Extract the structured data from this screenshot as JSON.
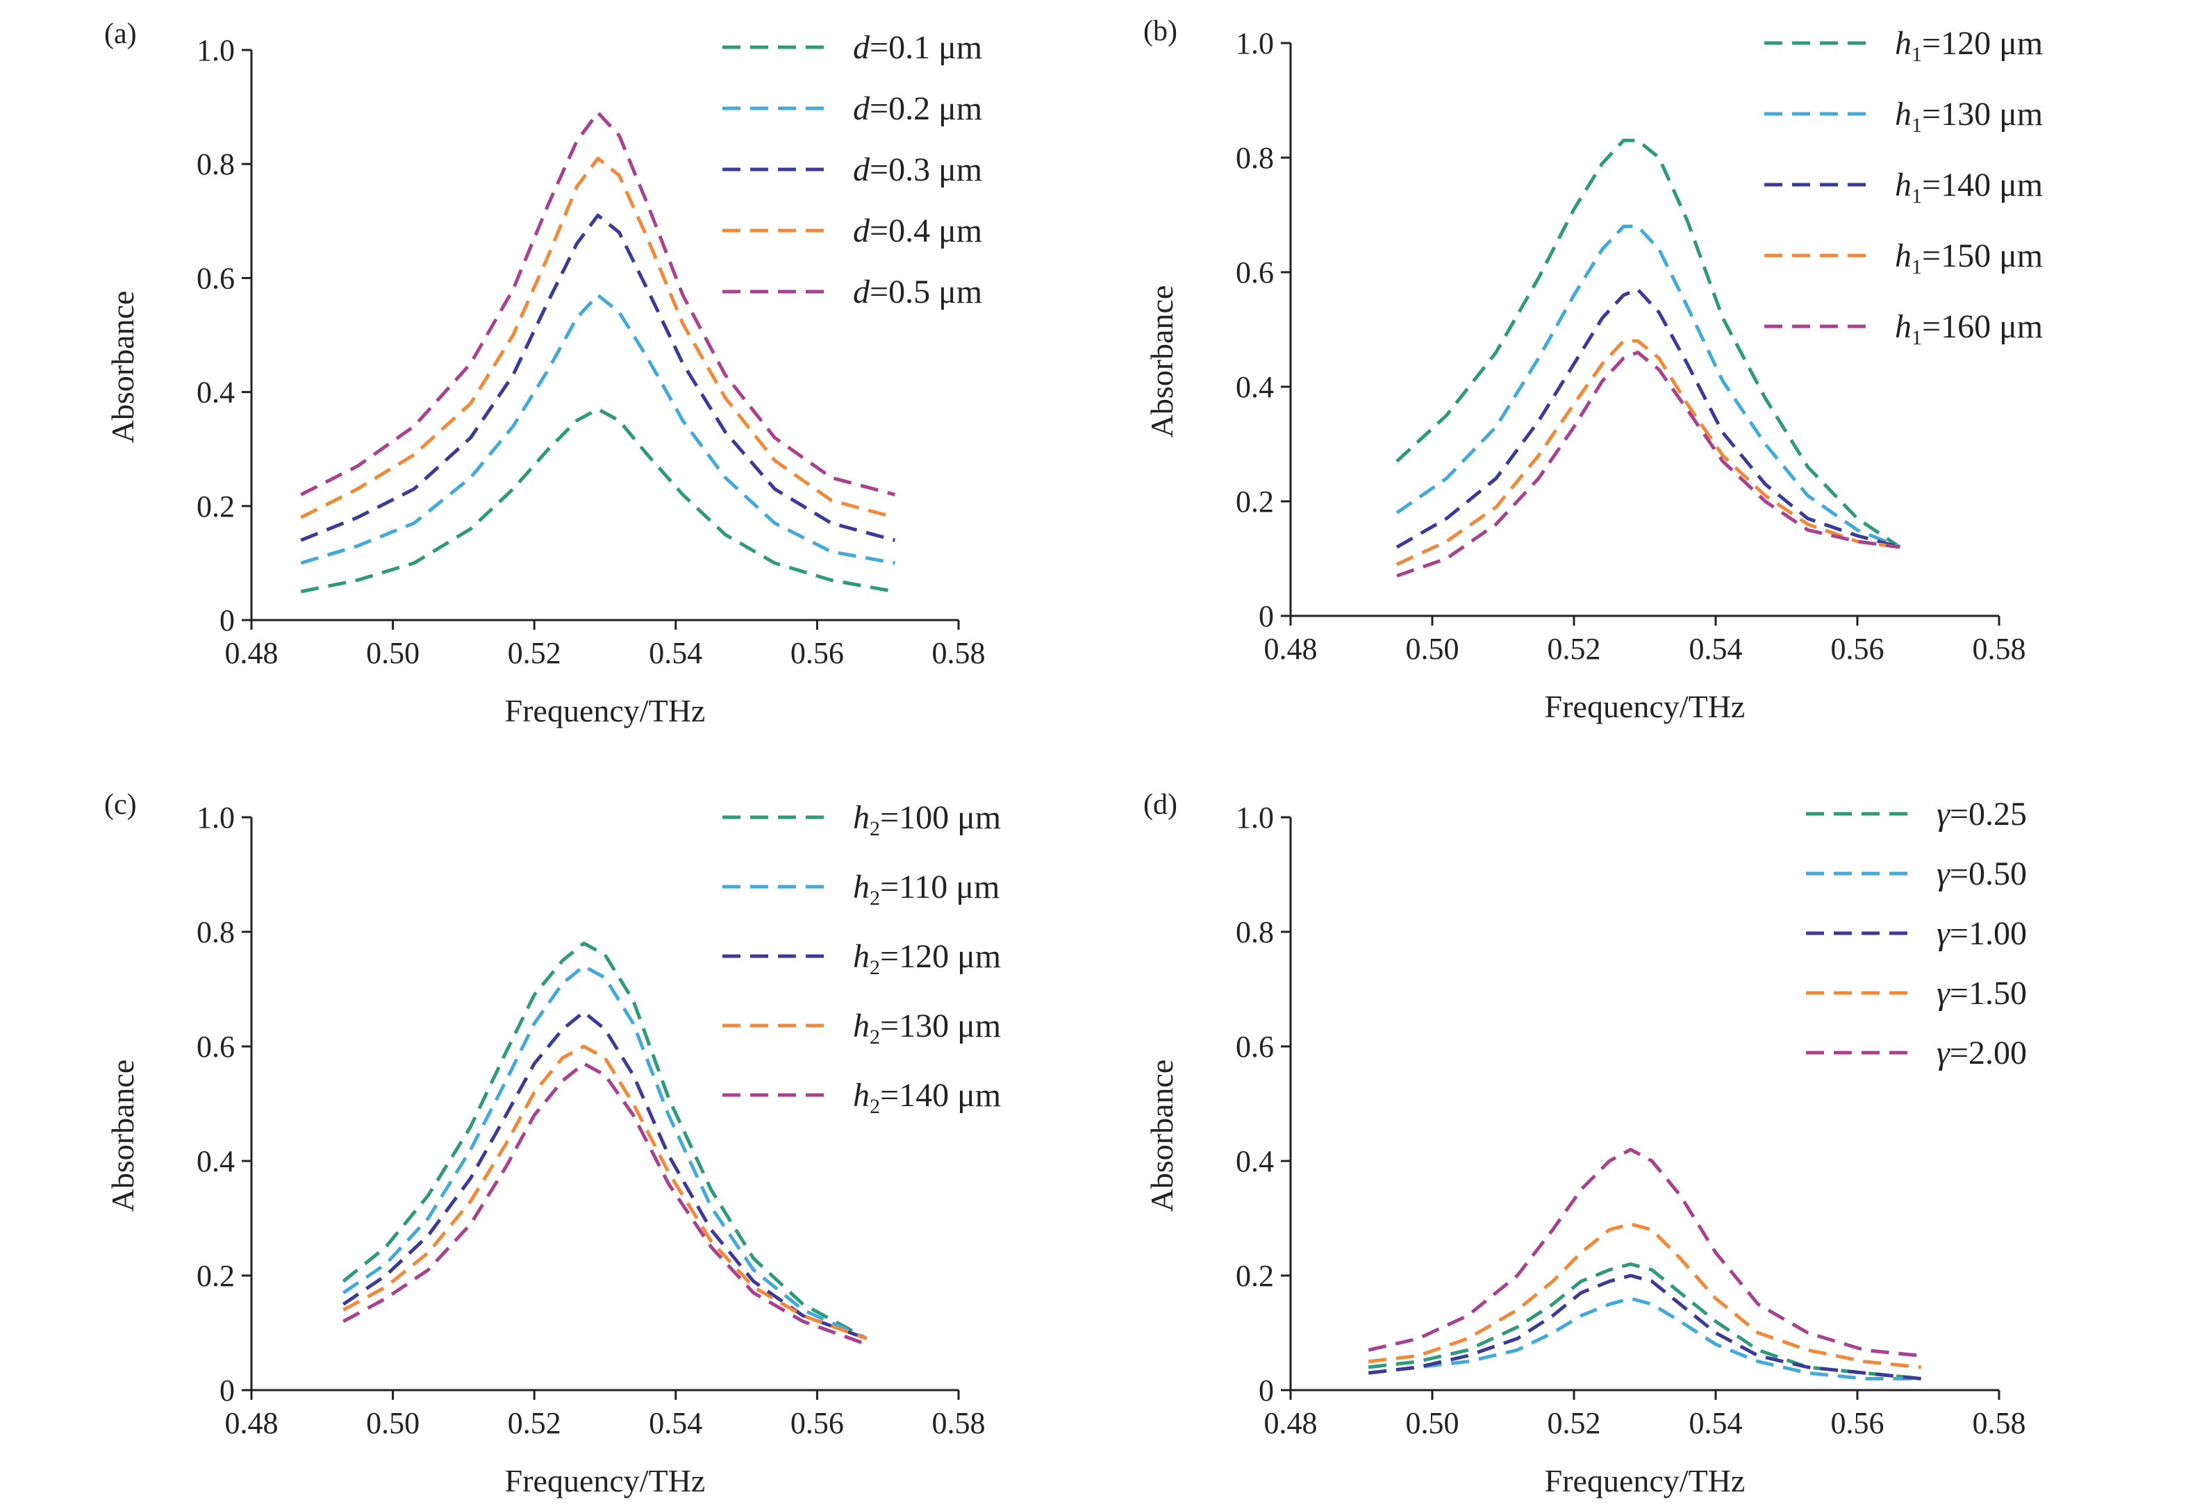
{
  "colors": [
    "#2e9a7a",
    "#43a9d9",
    "#3b3a98",
    "#f08a3a",
    "#a8418f"
  ],
  "chart_data": [
    {
      "type": "line",
      "panel": "(a)",
      "xlabel": "Frequency/THz",
      "ylabel": "Absorbance",
      "xlim": [
        0.48,
        0.58
      ],
      "ylim": [
        0,
        1.0
      ],
      "xticks": [
        "0.48",
        "0.50",
        "0.52",
        "0.54",
        "0.56",
        "0.58"
      ],
      "yticks": [
        "0",
        "0.2",
        "0.4",
        "0.6",
        "0.8",
        "1.0"
      ],
      "legend_position": "top-right",
      "series": [
        {
          "label_italic": "d",
          "label_rest": "=0.1 μm",
          "x": [
            0.487,
            0.495,
            0.503,
            0.511,
            0.517,
            0.522,
            0.526,
            0.529,
            0.532,
            0.536,
            0.541,
            0.547,
            0.554,
            0.562,
            0.571
          ],
          "y": [
            0.05,
            0.07,
            0.1,
            0.16,
            0.23,
            0.3,
            0.35,
            0.37,
            0.35,
            0.29,
            0.22,
            0.15,
            0.1,
            0.07,
            0.05
          ]
        },
        {
          "label_italic": "d",
          "label_rest": "=0.2 μm",
          "x": [
            0.487,
            0.495,
            0.503,
            0.511,
            0.517,
            0.522,
            0.526,
            0.529,
            0.532,
            0.536,
            0.541,
            0.547,
            0.554,
            0.562,
            0.571
          ],
          "y": [
            0.1,
            0.13,
            0.17,
            0.25,
            0.34,
            0.44,
            0.53,
            0.57,
            0.54,
            0.46,
            0.35,
            0.25,
            0.17,
            0.12,
            0.1
          ]
        },
        {
          "label_italic": "d",
          "label_rest": "=0.3 μm",
          "x": [
            0.487,
            0.495,
            0.503,
            0.511,
            0.517,
            0.522,
            0.526,
            0.529,
            0.532,
            0.536,
            0.541,
            0.547,
            0.554,
            0.562,
            0.571
          ],
          "y": [
            0.14,
            0.18,
            0.23,
            0.32,
            0.43,
            0.56,
            0.66,
            0.71,
            0.68,
            0.58,
            0.45,
            0.33,
            0.23,
            0.17,
            0.14
          ]
        },
        {
          "label_italic": "d",
          "label_rest": "=0.4 μm",
          "x": [
            0.487,
            0.495,
            0.503,
            0.511,
            0.517,
            0.522,
            0.526,
            0.529,
            0.532,
            0.536,
            0.541,
            0.547,
            0.554,
            0.562,
            0.571
          ],
          "y": [
            0.18,
            0.23,
            0.29,
            0.38,
            0.5,
            0.64,
            0.76,
            0.81,
            0.78,
            0.67,
            0.52,
            0.39,
            0.28,
            0.21,
            0.18
          ]
        },
        {
          "label_italic": "d",
          "label_rest": "=0.5 μm",
          "x": [
            0.487,
            0.495,
            0.503,
            0.511,
            0.517,
            0.522,
            0.526,
            0.529,
            0.532,
            0.536,
            0.541,
            0.547,
            0.554,
            0.562,
            0.571
          ],
          "y": [
            0.22,
            0.27,
            0.34,
            0.45,
            0.58,
            0.73,
            0.84,
            0.89,
            0.85,
            0.73,
            0.57,
            0.43,
            0.32,
            0.25,
            0.22
          ]
        }
      ]
    },
    {
      "type": "line",
      "panel": "(b)",
      "xlabel": "Frequency/THz",
      "ylabel": "Absorbance",
      "xlim": [
        0.48,
        0.58
      ],
      "ylim": [
        0,
        1.0
      ],
      "xticks": [
        "0.48",
        "0.50",
        "0.52",
        "0.54",
        "0.56",
        "0.58"
      ],
      "yticks": [
        "0",
        "0.2",
        "0.4",
        "0.6",
        "0.8",
        "1.0"
      ],
      "legend_position": "top-right",
      "series": [
        {
          "label_italic": "h",
          "label_sub": "1",
          "label_rest": "=120 μm",
          "x": [
            0.495,
            0.502,
            0.509,
            0.515,
            0.52,
            0.524,
            0.527,
            0.529,
            0.532,
            0.536,
            0.541,
            0.547,
            0.553,
            0.56,
            0.566
          ],
          "y": [
            0.27,
            0.35,
            0.46,
            0.59,
            0.71,
            0.79,
            0.83,
            0.83,
            0.8,
            0.69,
            0.52,
            0.38,
            0.26,
            0.17,
            0.12
          ]
        },
        {
          "label_italic": "h",
          "label_sub": "1",
          "label_rest": "=130 μm",
          "x": [
            0.495,
            0.502,
            0.509,
            0.515,
            0.52,
            0.524,
            0.527,
            0.529,
            0.532,
            0.536,
            0.541,
            0.547,
            0.553,
            0.56,
            0.566
          ],
          "y": [
            0.18,
            0.24,
            0.33,
            0.45,
            0.56,
            0.64,
            0.68,
            0.68,
            0.64,
            0.54,
            0.41,
            0.3,
            0.21,
            0.15,
            0.12
          ]
        },
        {
          "label_italic": "h",
          "label_sub": "1",
          "label_rest": "=140 μm",
          "x": [
            0.495,
            0.502,
            0.509,
            0.515,
            0.52,
            0.524,
            0.527,
            0.529,
            0.532,
            0.536,
            0.541,
            0.547,
            0.553,
            0.56,
            0.566
          ],
          "y": [
            0.12,
            0.17,
            0.24,
            0.34,
            0.44,
            0.52,
            0.56,
            0.57,
            0.53,
            0.44,
            0.32,
            0.23,
            0.17,
            0.14,
            0.12
          ]
        },
        {
          "label_italic": "h",
          "label_sub": "1",
          "label_rest": "=150 μm",
          "x": [
            0.495,
            0.502,
            0.509,
            0.515,
            0.52,
            0.524,
            0.527,
            0.529,
            0.532,
            0.536,
            0.541,
            0.547,
            0.553,
            0.56,
            0.566
          ],
          "y": [
            0.09,
            0.13,
            0.19,
            0.28,
            0.37,
            0.44,
            0.48,
            0.48,
            0.45,
            0.37,
            0.28,
            0.21,
            0.16,
            0.13,
            0.12
          ]
        },
        {
          "label_italic": "h",
          "label_sub": "1",
          "label_rest": "=160 μm",
          "x": [
            0.495,
            0.502,
            0.509,
            0.515,
            0.52,
            0.524,
            0.527,
            0.529,
            0.532,
            0.536,
            0.541,
            0.547,
            0.553,
            0.56,
            0.566
          ],
          "y": [
            0.07,
            0.1,
            0.16,
            0.24,
            0.33,
            0.41,
            0.45,
            0.46,
            0.43,
            0.36,
            0.27,
            0.2,
            0.15,
            0.13,
            0.12
          ]
        }
      ]
    },
    {
      "type": "line",
      "panel": "(c)",
      "xlabel": "Frequency/THz",
      "ylabel": "Absorbance",
      "xlim": [
        0.48,
        0.58
      ],
      "ylim": [
        0,
        1.0
      ],
      "xticks": [
        "0.48",
        "0.50",
        "0.52",
        "0.54",
        "0.56",
        "0.58"
      ],
      "yticks": [
        "0",
        "0.2",
        "0.4",
        "0.6",
        "0.8",
        "1.0"
      ],
      "legend_position": "top-right",
      "series": [
        {
          "label_italic": "h",
          "label_sub": "2",
          "label_rest": "=100 μm",
          "x": [
            0.493,
            0.499,
            0.505,
            0.511,
            0.516,
            0.52,
            0.524,
            0.527,
            0.53,
            0.534,
            0.539,
            0.545,
            0.551,
            0.558,
            0.567
          ],
          "y": [
            0.19,
            0.25,
            0.34,
            0.46,
            0.59,
            0.69,
            0.75,
            0.78,
            0.76,
            0.68,
            0.51,
            0.35,
            0.23,
            0.15,
            0.09
          ]
        },
        {
          "label_italic": "h",
          "label_sub": "2",
          "label_rest": "=110 μm",
          "x": [
            0.493,
            0.499,
            0.505,
            0.511,
            0.516,
            0.52,
            0.524,
            0.527,
            0.53,
            0.534,
            0.539,
            0.545,
            0.551,
            0.558,
            0.567
          ],
          "y": [
            0.17,
            0.22,
            0.3,
            0.42,
            0.54,
            0.64,
            0.71,
            0.74,
            0.72,
            0.64,
            0.48,
            0.32,
            0.21,
            0.14,
            0.09
          ]
        },
        {
          "label_italic": "h",
          "label_sub": "2",
          "label_rest": "=120 μm",
          "x": [
            0.493,
            0.499,
            0.505,
            0.511,
            0.516,
            0.52,
            0.524,
            0.527,
            0.53,
            0.534,
            0.539,
            0.545,
            0.551,
            0.558,
            0.567
          ],
          "y": [
            0.15,
            0.2,
            0.27,
            0.37,
            0.48,
            0.57,
            0.63,
            0.66,
            0.63,
            0.55,
            0.41,
            0.28,
            0.19,
            0.13,
            0.09
          ]
        },
        {
          "label_italic": "h",
          "label_sub": "2",
          "label_rest": "=130 μm",
          "x": [
            0.493,
            0.499,
            0.505,
            0.511,
            0.516,
            0.52,
            0.524,
            0.527,
            0.53,
            0.534,
            0.539,
            0.545,
            0.551,
            0.558,
            0.567
          ],
          "y": [
            0.14,
            0.18,
            0.24,
            0.33,
            0.43,
            0.52,
            0.58,
            0.6,
            0.58,
            0.5,
            0.38,
            0.26,
            0.18,
            0.13,
            0.09
          ]
        },
        {
          "label_italic": "h",
          "label_sub": "2",
          "label_rest": "=140 μm",
          "x": [
            0.493,
            0.499,
            0.505,
            0.511,
            0.516,
            0.52,
            0.524,
            0.527,
            0.53,
            0.534,
            0.539,
            0.545,
            0.551,
            0.558,
            0.567
          ],
          "y": [
            0.12,
            0.16,
            0.21,
            0.29,
            0.39,
            0.48,
            0.54,
            0.57,
            0.55,
            0.48,
            0.36,
            0.25,
            0.17,
            0.12,
            0.08
          ]
        }
      ]
    },
    {
      "type": "line",
      "panel": "(d)",
      "xlabel": "Frequency/THz",
      "ylabel": "Absorbance",
      "xlim": [
        0.48,
        0.58
      ],
      "ylim": [
        0,
        1.0
      ],
      "xticks": [
        "0.48",
        "0.50",
        "0.52",
        "0.54",
        "0.56",
        "0.58"
      ],
      "yticks": [
        "0",
        "0.2",
        "0.4",
        "0.6",
        "0.8",
        "1.0"
      ],
      "legend_position": "top-right",
      "series": [
        {
          "label_italic": "γ",
          "label_rest": "=0.25",
          "x": [
            0.491,
            0.498,
            0.505,
            0.512,
            0.517,
            0.521,
            0.525,
            0.528,
            0.531,
            0.535,
            0.54,
            0.546,
            0.553,
            0.561,
            0.569
          ],
          "y": [
            0.04,
            0.05,
            0.07,
            0.11,
            0.15,
            0.19,
            0.21,
            0.22,
            0.21,
            0.17,
            0.12,
            0.07,
            0.04,
            0.03,
            0.02
          ]
        },
        {
          "label_italic": "γ",
          "label_rest": "=0.50",
          "x": [
            0.491,
            0.498,
            0.505,
            0.512,
            0.517,
            0.521,
            0.525,
            0.528,
            0.531,
            0.535,
            0.54,
            0.546,
            0.553,
            0.561,
            0.569
          ],
          "y": [
            0.03,
            0.04,
            0.05,
            0.07,
            0.1,
            0.13,
            0.15,
            0.16,
            0.15,
            0.12,
            0.08,
            0.05,
            0.03,
            0.02,
            0.02
          ]
        },
        {
          "label_italic": "γ",
          "label_rest": "=1.00",
          "x": [
            0.491,
            0.498,
            0.505,
            0.512,
            0.517,
            0.521,
            0.525,
            0.528,
            0.531,
            0.535,
            0.54,
            0.546,
            0.553,
            0.561,
            0.569
          ],
          "y": [
            0.03,
            0.04,
            0.06,
            0.09,
            0.13,
            0.17,
            0.19,
            0.2,
            0.19,
            0.15,
            0.1,
            0.06,
            0.04,
            0.03,
            0.02
          ]
        },
        {
          "label_italic": "γ",
          "label_rest": "=1.50",
          "x": [
            0.491,
            0.498,
            0.505,
            0.512,
            0.517,
            0.521,
            0.525,
            0.528,
            0.531,
            0.535,
            0.54,
            0.546,
            0.553,
            0.561,
            0.569
          ],
          "y": [
            0.05,
            0.06,
            0.09,
            0.14,
            0.19,
            0.24,
            0.28,
            0.29,
            0.28,
            0.23,
            0.16,
            0.1,
            0.07,
            0.05,
            0.04
          ]
        },
        {
          "label_italic": "γ",
          "label_rest": "=2.00",
          "x": [
            0.491,
            0.498,
            0.505,
            0.512,
            0.517,
            0.521,
            0.525,
            0.528,
            0.531,
            0.535,
            0.54,
            0.546,
            0.553,
            0.561,
            0.569
          ],
          "y": [
            0.07,
            0.09,
            0.13,
            0.2,
            0.28,
            0.35,
            0.4,
            0.42,
            0.4,
            0.34,
            0.24,
            0.15,
            0.1,
            0.07,
            0.06
          ]
        }
      ]
    }
  ]
}
